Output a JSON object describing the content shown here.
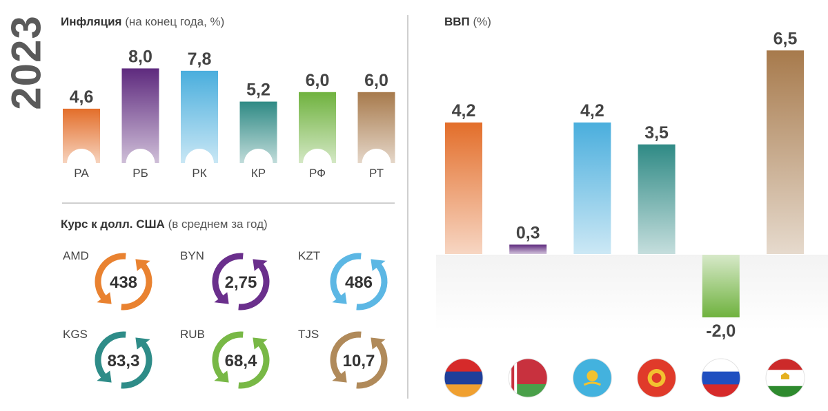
{
  "year": "2023",
  "inflation": {
    "title_bold": "Инфляция",
    "title_rest": " (на конец года, %)"
  },
  "exchange": {
    "title_bold": "Курс к долл. США",
    "title_rest": " (в среднем за год)"
  },
  "gdp": {
    "title_bold": "ВВП",
    "title_rest": " (%)"
  },
  "chart_data": [
    {
      "type": "bar",
      "title": "Инфляция (на конец года, %)",
      "categories": [
        "РА",
        "РБ",
        "РК",
        "КР",
        "РФ",
        "РТ"
      ],
      "values": [
        4.6,
        8.0,
        7.8,
        5.2,
        6.0,
        6.0
      ],
      "labels": [
        "4,6",
        "8,0",
        "7,8",
        "5,2",
        "6,0",
        "6,0"
      ],
      "colors": [
        "#e36e2a",
        "#5e2a7e",
        "#4aaedd",
        "#2f8a85",
        "#6fb23e",
        "#a77a4c"
      ]
    },
    {
      "type": "table",
      "title": "Курс к долл. США (в среднем за год)",
      "items": [
        {
          "code": "AMD",
          "value": "438",
          "color": "#e98230"
        },
        {
          "code": "BYN",
          "value": "2,75",
          "color": "#6a2f8c"
        },
        {
          "code": "KZT",
          "value": "486",
          "color": "#5cb7e4"
        },
        {
          "code": "KGS",
          "value": "83,3",
          "color": "#2e8c88"
        },
        {
          "code": "RUB",
          "value": "68,4",
          "color": "#78b846"
        },
        {
          "code": "TJS",
          "value": "10,7",
          "color": "#b08a5a"
        }
      ]
    },
    {
      "type": "bar",
      "title": "ВВП (%)",
      "categories": [
        "armenia-flag",
        "belarus-flag",
        "kazakhstan-flag",
        "kyrgyzstan-flag",
        "russia-flag",
        "tajikistan-flag"
      ],
      "values": [
        4.2,
        0.3,
        4.2,
        3.5,
        -2.0,
        6.5
      ],
      "labels": [
        "4,2",
        "0,3",
        "4,2",
        "3,5",
        "-2,0",
        "6,5"
      ],
      "colors": [
        "#e36e2a",
        "#5e2a7e",
        "#4aaedd",
        "#2f8a85",
        "#6fb23e",
        "#a77a4c"
      ]
    }
  ]
}
